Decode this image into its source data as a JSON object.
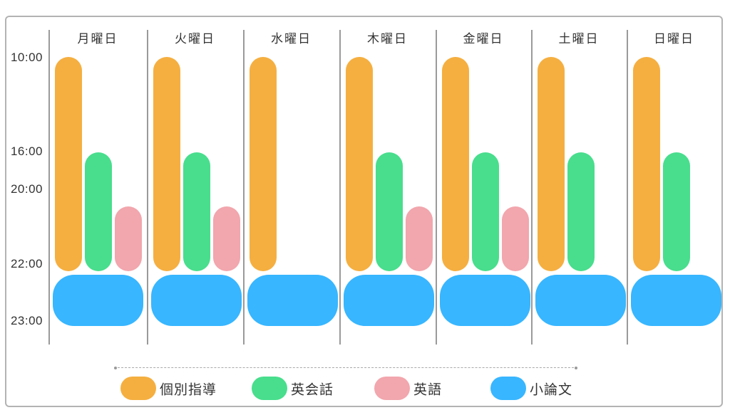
{
  "chart_data": {
    "type": "bar",
    "subtype": "weekly-schedule-timeline",
    "orientation": "vertical-time-top-down",
    "days": [
      "月曜日",
      "火曜日",
      "水曜日",
      "木曜日",
      "金曜日",
      "土曜日",
      "日曜日"
    ],
    "time_axis": {
      "ticks": [
        "10:00",
        "16:00",
        "20:00",
        "22:00",
        "23:00"
      ],
      "direction": "top-to-bottom",
      "grid": "column-dividers-only"
    },
    "series": [
      {
        "id": "kobetsu",
        "name": "個別指導",
        "color": "#F5AF40",
        "start": "10:00",
        "end": "22:00",
        "days": [
          "月曜日",
          "火曜日",
          "水曜日",
          "木曜日",
          "金曜日",
          "土曜日",
          "日曜日"
        ]
      },
      {
        "id": "eikaiwa",
        "name": "英会話",
        "color": "#48DE8D",
        "start": "16:00",
        "end": "22:00",
        "days": [
          "月曜日",
          "火曜日",
          "木曜日",
          "金曜日",
          "土曜日",
          "日曜日"
        ]
      },
      {
        "id": "eigo",
        "name": "英語",
        "color": "#F2A6AD",
        "start": "20:30",
        "end": "22:00",
        "days": [
          "月曜日",
          "火曜日",
          "木曜日",
          "金曜日"
        ]
      },
      {
        "id": "essay",
        "name": "小論文",
        "color": "#38B6FF",
        "start": "22:00",
        "end": "23:00",
        "days": [
          "月曜日",
          "火曜日",
          "水曜日",
          "木曜日",
          "金曜日",
          "土曜日",
          "日曜日"
        ]
      }
    ],
    "legend": {
      "position": "bottom",
      "items": [
        {
          "label": "個別指導",
          "color": "#F5AF40"
        },
        {
          "label": "英会話",
          "color": "#48DE8D"
        },
        {
          "label": "英語",
          "color": "#F2A6AD"
        },
        {
          "label": "小論文",
          "color": "#38B6FF"
        }
      ]
    },
    "colors": {
      "divider": "#9a9a9a",
      "card_border": "#b3b3b3",
      "text": "#333333",
      "background": "#ffffff"
    }
  }
}
